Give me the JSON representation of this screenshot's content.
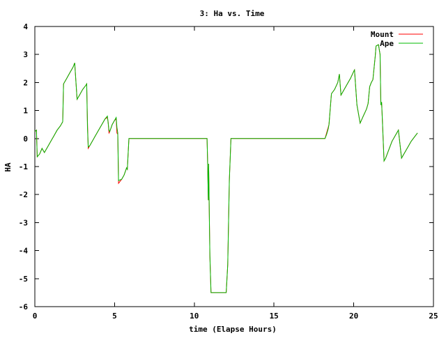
{
  "chart_data": {
    "type": "line",
    "title": "3: Ha vs. Time",
    "xlabel": "time (Elapse Hours)",
    "ylabel": "HA",
    "xlim": [
      0,
      25
    ],
    "ylim": [
      -6,
      4
    ],
    "x_ticks": [
      0,
      5,
      10,
      15,
      20,
      25
    ],
    "y_ticks": [
      -6,
      -5,
      -4,
      -3,
      -2,
      -1,
      0,
      1,
      2,
      3,
      4
    ],
    "grid": false,
    "legend_position": "top-right",
    "series": [
      {
        "name": "Mount",
        "color": "#ff0000",
        "x": [
          0.0,
          0.1,
          0.15,
          0.3,
          0.45,
          0.6,
          0.8,
          1.0,
          1.2,
          1.4,
          1.6,
          1.75,
          1.8,
          2.0,
          2.2,
          2.4,
          2.5,
          2.65,
          2.8,
          3.0,
          3.2,
          3.25,
          3.3,
          3.35,
          3.45,
          3.6,
          3.8,
          4.0,
          4.2,
          4.4,
          4.55,
          4.6,
          4.65,
          4.7,
          4.85,
          5.0,
          5.1,
          5.15,
          5.2,
          5.25,
          5.45,
          5.6,
          5.75,
          5.8,
          5.9,
          10.8,
          10.83,
          10.88,
          10.9,
          10.95,
          10.98,
          11.05,
          11.1,
          11.2,
          12.0,
          12.1,
          12.2,
          12.3,
          15.0,
          18.2,
          18.3,
          18.4,
          18.45,
          18.6,
          18.8,
          19.0,
          19.1,
          19.2,
          19.4,
          19.6,
          19.8,
          20.0,
          20.05,
          20.2,
          20.4,
          20.6,
          20.8,
          20.9,
          21.0,
          21.1,
          21.2,
          21.35,
          21.4,
          21.55,
          21.65,
          21.7,
          21.75,
          21.8,
          21.9,
          22.0,
          22.2,
          22.4,
          22.6,
          22.8,
          23.0,
          23.2,
          23.4,
          23.6,
          23.8,
          24.0
        ],
        "y": [
          0.25,
          0.3,
          -0.65,
          -0.55,
          -0.35,
          -0.5,
          -0.3,
          -0.1,
          0.1,
          0.3,
          0.45,
          0.6,
          1.95,
          2.15,
          2.35,
          2.55,
          2.7,
          1.4,
          1.55,
          1.75,
          1.9,
          1.95,
          0.6,
          -0.35,
          -0.25,
          -0.1,
          0.1,
          0.3,
          0.5,
          0.7,
          0.75,
          0.6,
          0.2,
          0.25,
          0.5,
          0.65,
          0.7,
          0.2,
          0.15,
          -1.6,
          -1.45,
          -1.3,
          -1.05,
          -1.1,
          0.0,
          0.0,
          -0.7,
          -2.2,
          -0.9,
          -3.0,
          -4.2,
          -5.5,
          -5.5,
          -5.5,
          -5.5,
          -4.5,
          -1.5,
          0.0,
          0.0,
          0.0,
          0.2,
          0.4,
          0.5,
          1.6,
          1.75,
          2.0,
          2.3,
          1.55,
          1.75,
          1.95,
          2.15,
          2.4,
          2.45,
          1.2,
          0.55,
          0.8,
          1.05,
          1.25,
          1.85,
          2.0,
          2.1,
          2.95,
          3.3,
          3.35,
          3.0,
          1.2,
          1.3,
          0.6,
          -0.8,
          -0.7,
          -0.4,
          -0.1,
          0.1,
          0.3,
          -0.7,
          -0.5,
          -0.3,
          -0.1,
          0.05,
          0.2
        ]
      },
      {
        "name": "Ape",
        "color": "#00bb00",
        "x": [
          0.0,
          0.1,
          0.15,
          0.3,
          0.45,
          0.6,
          0.8,
          1.0,
          1.2,
          1.4,
          1.6,
          1.75,
          1.8,
          2.0,
          2.2,
          2.4,
          2.5,
          2.65,
          2.8,
          3.0,
          3.2,
          3.25,
          3.3,
          3.35,
          3.45,
          3.6,
          3.8,
          4.0,
          4.2,
          4.4,
          4.55,
          4.6,
          4.65,
          4.7,
          4.85,
          5.0,
          5.1,
          5.15,
          5.2,
          5.25,
          5.45,
          5.6,
          5.75,
          5.8,
          5.9,
          10.8,
          10.83,
          10.88,
          10.9,
          10.95,
          10.98,
          11.05,
          11.1,
          11.2,
          12.0,
          12.1,
          12.2,
          12.3,
          15.0,
          18.2,
          18.3,
          18.4,
          18.45,
          18.6,
          18.8,
          19.0,
          19.1,
          19.2,
          19.4,
          19.6,
          19.8,
          20.0,
          20.05,
          20.2,
          20.4,
          20.6,
          20.8,
          20.9,
          21.0,
          21.1,
          21.2,
          21.35,
          21.4,
          21.55,
          21.65,
          21.7,
          21.75,
          21.8,
          21.9,
          22.0,
          22.2,
          22.4,
          22.6,
          22.8,
          23.0,
          23.2,
          23.4,
          23.6,
          23.8,
          24.0
        ],
        "y": [
          0.25,
          0.3,
          -0.65,
          -0.55,
          -0.35,
          -0.5,
          -0.3,
          -0.1,
          0.1,
          0.3,
          0.45,
          0.6,
          1.95,
          2.15,
          2.35,
          2.55,
          2.7,
          1.4,
          1.55,
          1.75,
          1.9,
          1.95,
          0.4,
          -0.3,
          -0.25,
          -0.1,
          0.1,
          0.3,
          0.5,
          0.7,
          0.8,
          0.55,
          0.3,
          0.25,
          0.5,
          0.65,
          0.75,
          0.4,
          0.2,
          -1.5,
          -1.45,
          -1.3,
          -1.05,
          -1.1,
          0.0,
          0.0,
          -0.7,
          -2.2,
          -0.9,
          -3.0,
          -4.2,
          -5.5,
          -5.5,
          -5.5,
          -5.5,
          -4.5,
          -1.5,
          0.0,
          0.0,
          0.0,
          0.15,
          0.35,
          0.5,
          1.6,
          1.75,
          2.0,
          2.3,
          1.55,
          1.75,
          1.95,
          2.15,
          2.4,
          2.45,
          1.2,
          0.55,
          0.8,
          1.05,
          1.25,
          1.85,
          2.0,
          2.1,
          2.95,
          3.3,
          3.35,
          3.0,
          1.2,
          1.3,
          0.6,
          -0.8,
          -0.7,
          -0.4,
          -0.1,
          0.1,
          0.3,
          -0.7,
          -0.5,
          -0.3,
          -0.1,
          0.05,
          0.2
        ]
      }
    ]
  }
}
